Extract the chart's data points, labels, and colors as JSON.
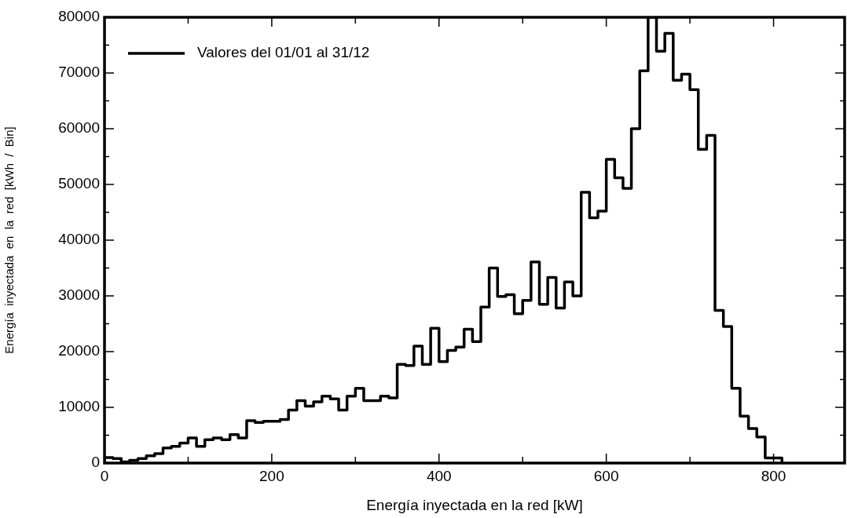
{
  "chart_data": {
    "type": "histogram",
    "xlabel": "Energía inyectada en la red [kW]",
    "ylabel": "Energía  inyectada  en  la  red  [kWh  /  Bin]",
    "bins": [
      0,
      10,
      20,
      30,
      40,
      50,
      60,
      70,
      80,
      90,
      100,
      110,
      120,
      130,
      140,
      150,
      160,
      170,
      180,
      190,
      200,
      210,
      220,
      230,
      240,
      250,
      260,
      270,
      280,
      290,
      300,
      310,
      320,
      330,
      340,
      350,
      360,
      370,
      380,
      390,
      400,
      410,
      420,
      430,
      440,
      450,
      460,
      470,
      480,
      490,
      500,
      510,
      520,
      530,
      540,
      550,
      560,
      570,
      580,
      590,
      600,
      610,
      620,
      630,
      640,
      650,
      660,
      670,
      680,
      690,
      700,
      710,
      720,
      730,
      740,
      750,
      760,
      770,
      780,
      790,
      800,
      810
    ],
    "series": [
      {
        "name": "Valores del 01/01 al 31/12",
        "color": "#000000",
        "values": [
          1000,
          800,
          200,
          500,
          800,
          1300,
          1700,
          2700,
          3000,
          3600,
          4500,
          3000,
          4200,
          4500,
          4200,
          5100,
          4500,
          7600,
          7300,
          7500,
          7500,
          7800,
          9500,
          11200,
          10200,
          11000,
          12000,
          11500,
          9500,
          12000,
          13400,
          11200,
          11200,
          12000,
          11700,
          17700,
          17500,
          21000,
          17700,
          24200,
          18200,
          20200,
          20800,
          24000,
          21800,
          28000,
          35000,
          29900,
          30200,
          26800,
          29200,
          36100,
          28500,
          33300,
          27800,
          32500,
          30000,
          48600,
          44000,
          45200,
          54500,
          51200,
          49300,
          60000,
          70400,
          80000,
          73900,
          77100,
          68700,
          69800,
          67000,
          56300,
          58800,
          27400,
          24500,
          13400,
          8400,
          6200,
          4700,
          900,
          900
        ]
      }
    ],
    "xlim": [
      0,
      885
    ],
    "xticks": [
      0,
      {
        "value": 100,
        "label": null
      },
      200,
      {
        "value": 300,
        "label": null
      },
      400,
      {
        "value": 500,
        "label": null
      },
      600,
      {
        "value": 700,
        "label": null
      },
      800
    ],
    "ylim": [
      0,
      80000
    ],
    "yticks": [
      0,
      {
        "value": 5000,
        "label": null
      },
      10000,
      {
        "value": 15000,
        "label": null
      },
      20000,
      {
        "value": 25000,
        "label": null
      },
      30000,
      {
        "value": 35000,
        "label": null
      },
      40000,
      {
        "value": 45000,
        "label": null
      },
      50000,
      {
        "value": 55000,
        "label": null
      },
      60000,
      {
        "value": 65000,
        "label": null
      },
      70000,
      {
        "value": 75000,
        "label": null
      },
      80000
    ],
    "legend": "top left",
    "line_style": "solid"
  }
}
